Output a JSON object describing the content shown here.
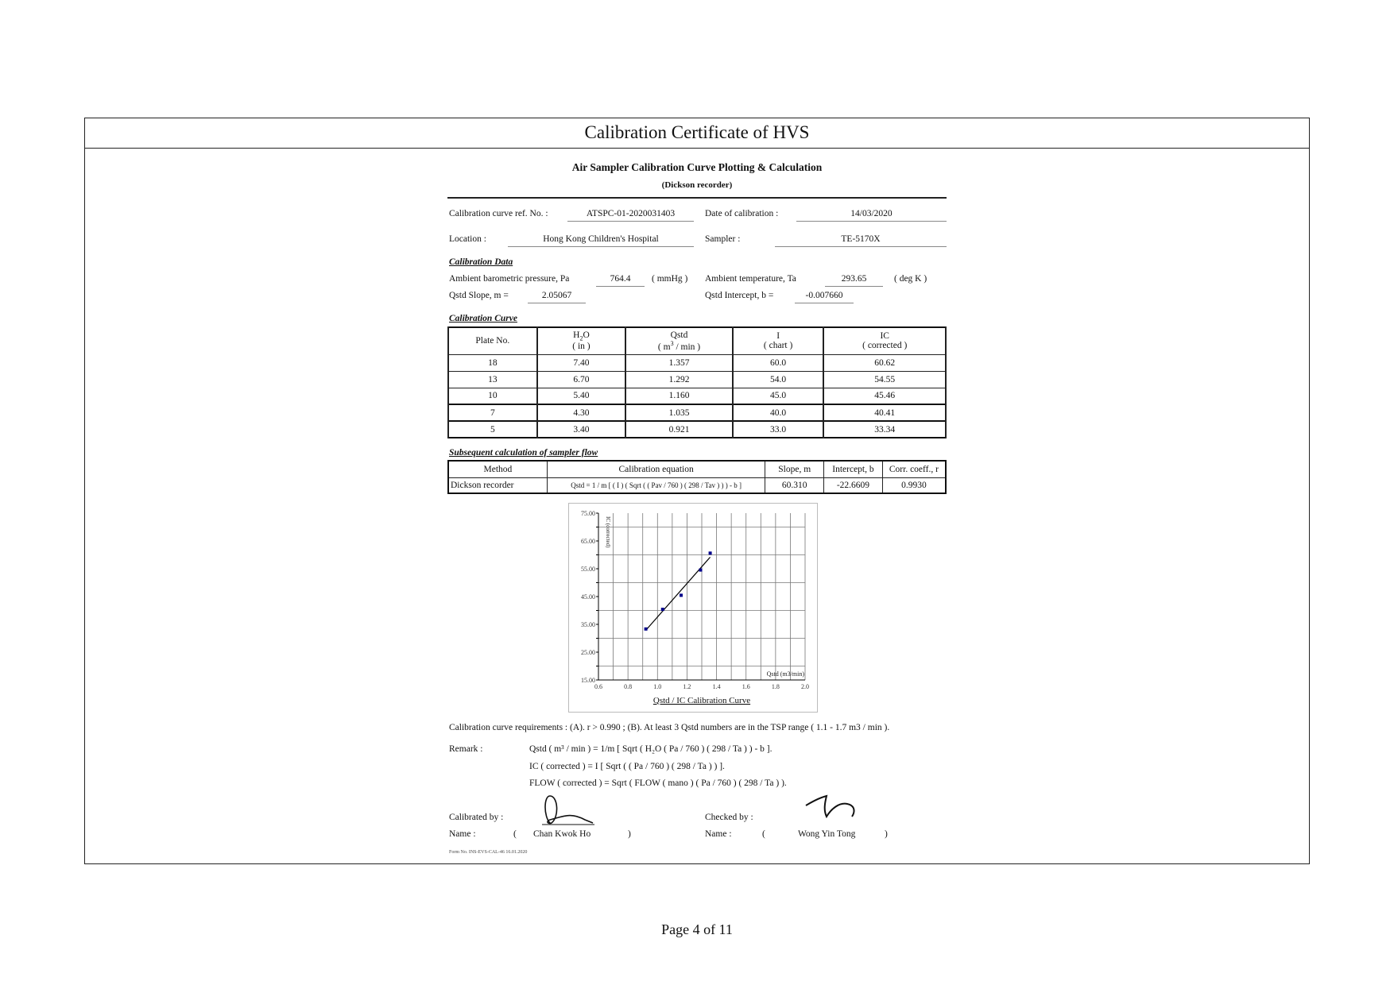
{
  "header": {
    "title": "Calibration Certificate of HVS"
  },
  "form": {
    "heading": "Air Sampler Calibration Curve Plotting & Calculation",
    "subheading": "(Dickson recorder)",
    "ref_label": "Calibration curve ref. No. :",
    "ref_value": "ATSPC-01-2020031403",
    "date_label": "Date of calibration :",
    "date_value": "14/03/2020",
    "location_label": "Location :",
    "location_value": "Hong Kong Children's Hospital",
    "sampler_label": "Sampler :",
    "sampler_value": "TE-5170X"
  },
  "calibration_data": {
    "heading": "Calibration Data",
    "pa_label": "Ambient barometric pressure, Pa",
    "pa_value": "764.4",
    "pa_unit": "( mmHg )",
    "ta_label": "Ambient temperature, Ta",
    "ta_value": "293.65",
    "ta_unit": "( deg K )",
    "slope_label": "Qstd Slope, m =",
    "slope_value": "2.05067",
    "intercept_label": "Qstd Intercept, b =",
    "intercept_value": "-0.007660"
  },
  "calibration_curve": {
    "heading": "Calibration Curve",
    "headers": [
      {
        "l1": "Plate No.",
        "l2": ""
      },
      {
        "l1": "H2O",
        "l2": "( in )"
      },
      {
        "l1": "Qstd",
        "l2": "( m3 / min )"
      },
      {
        "l1": "I",
        "l2": "( chart )"
      },
      {
        "l1": "IC",
        "l2": "( corrected )"
      }
    ],
    "rows": [
      [
        "18",
        "7.40",
        "1.357",
        "60.0",
        "60.62"
      ],
      [
        "13",
        "6.70",
        "1.292",
        "54.0",
        "54.55"
      ],
      [
        "10",
        "5.40",
        "1.160",
        "45.0",
        "45.46"
      ],
      [
        "7",
        "4.30",
        "1.035",
        "40.0",
        "40.41"
      ],
      [
        "5",
        "3.40",
        "0.921",
        "33.0",
        "33.34"
      ]
    ]
  },
  "subsequent": {
    "heading": "Subsequent calculation of sampler flow",
    "headers": [
      "Method",
      "Calibration equation",
      "Slope, m",
      "Intercept, b",
      "Corr. coeff., r"
    ],
    "row": [
      "Dickson recorder",
      "Qstd = 1 / m [ ( I ) ( Sqrt ( ( Pav / 760 ) ( 298 / Tav ) ) ) - b ]",
      "60.310",
      "-22.6609",
      "0.9930"
    ]
  },
  "chart_data": {
    "type": "scatter",
    "title": "Qstd / IC Calibration Curve",
    "xlabel": "Qstd (m3/min)",
    "ylabel": "IC (corrected)",
    "xlim": [
      0.6,
      2.0
    ],
    "ylim": [
      15,
      75
    ],
    "x_ticks": [
      "0.6",
      "0.8",
      "1.0",
      "1.2",
      "1.4",
      "1.6",
      "1.8",
      "2.0"
    ],
    "y_ticks": [
      "15.00",
      "25.00",
      "35.00",
      "45.00",
      "55.00",
      "65.00",
      "75.00"
    ],
    "grid": true,
    "points": [
      [
        1.357,
        60.62
      ],
      [
        1.292,
        54.55
      ],
      [
        1.16,
        45.46
      ],
      [
        1.035,
        40.41
      ],
      [
        0.921,
        33.34
      ]
    ],
    "fit": {
      "slope": 60.31,
      "intercept": -22.6609
    },
    "marker_color": "#00008b",
    "line_color": "#000000"
  },
  "requirements": "Calibration curve requirements :   (A).  r > 0.990 ;  (B).  At least 3 Qstd numbers are in the TSP range ( 1.1 - 1.7 m3 / min ).",
  "remark": {
    "label": "Remark :",
    "lines": [
      "Qstd ( m³ / min ) = 1/m [ Sqrt ( H₂O ( Pa / 760 ) ( 298 / Ta ) ) - b ].",
      "IC ( corrected ) = I [ Sqrt ( ( Pa / 760 ) ( 298 / Ta ) ) ].",
      "FLOW ( corrected ) =  Sqrt ( FLOW ( mano ) ( Pa / 760 ) ( 298 / Ta ) )."
    ]
  },
  "signoff": {
    "calibrated_label": "Calibrated by :",
    "checked_label": "Checked by :",
    "name_label": "Name :",
    "open_paren": "(",
    "close_paren": ")",
    "calibrated_name": "Chan Kwok Ho",
    "checked_name": "Wong Yin Tong"
  },
  "form_no": "Form No. INS-EVS-CAL-46 16.01.2020",
  "footer": {
    "page": "Page 4 of 11"
  }
}
